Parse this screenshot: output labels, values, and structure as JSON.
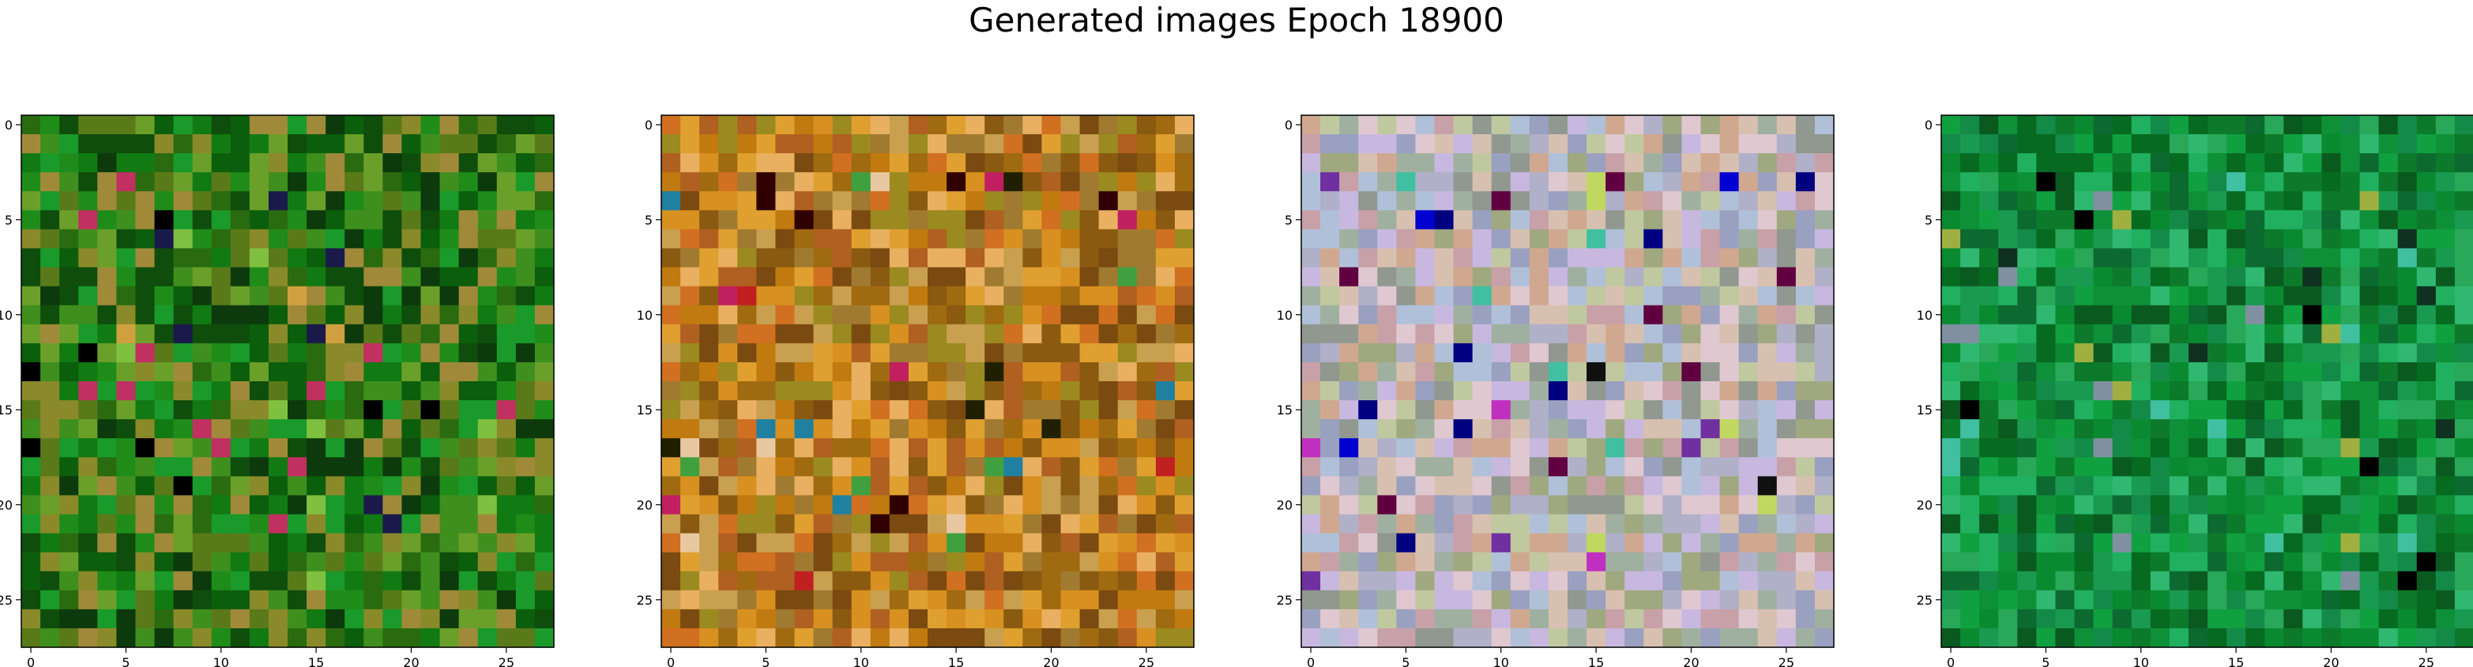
{
  "figure": {
    "title": "Generated images Epoch 18900"
  },
  "chart_data": {
    "type": "heatmap",
    "title": "Generated images Epoch 18900",
    "panel_count": 4,
    "grid_shape": [
      28,
      28
    ],
    "xlim": [
      -0.5,
      27.5
    ],
    "ylim": [
      27.5,
      -0.5
    ],
    "x_ticks": [
      0,
      5,
      10,
      15,
      20,
      25
    ],
    "y_ticks": [
      0,
      5,
      10,
      15,
      20,
      25
    ],
    "x_tick_labels": [
      "0",
      "5",
      "10",
      "15",
      "20",
      "25"
    ],
    "y_tick_labels": [
      "0",
      "5",
      "10",
      "15",
      "20",
      "25"
    ],
    "panels": [
      {
        "name": "image-1",
        "palette": [
          "#0b5e0b",
          "#127a12",
          "#1f8c1a",
          "#2a6b10",
          "#0f4d0c",
          "#3f8f1f",
          "#5a7a1a",
          "#8a8a2a",
          "#1a9a2a",
          "#0c3a0c",
          "#6aa02a",
          "#a08a3a"
        ],
        "accents": [
          "#000000",
          "#1a1a4a",
          "#c03060",
          "#d0a040",
          "#80c040"
        ]
      },
      {
        "name": "image-2",
        "palette": [
          "#c07a10",
          "#d89020",
          "#a06a10",
          "#8a5a10",
          "#e0a030",
          "#b06020",
          "#9a8a20",
          "#d07020",
          "#c8a050",
          "#a07a30",
          "#e8b060",
          "#7a4a10"
        ],
        "accents": [
          "#300000",
          "#c02020",
          "#202000",
          "#e8c8a0",
          "#40a040",
          "#2080a0",
          "#c02060"
        ]
      },
      {
        "name": "image-3",
        "palette": [
          "#c8a0a8",
          "#a0a880",
          "#b0b0c8",
          "#d8c0b0",
          "#9aa0c0",
          "#c0c8a0",
          "#e0c8d0",
          "#a0b0a0",
          "#c8b8e0",
          "#b0c0d8",
          "#d0a890",
          "#909890"
        ],
        "accents": [
          "#000080",
          "#0000d0",
          "#101010",
          "#600040",
          "#c030c0",
          "#40c0a0",
          "#f0e0c0",
          "#c0d860",
          "#7030a0"
        ]
      },
      {
        "name": "image-4",
        "palette": [
          "#0a8a30",
          "#10a040",
          "#0c7a2a",
          "#1a9a50",
          "#066a20",
          "#20b060",
          "#0e9038",
          "#148a48",
          "#0a5a20",
          "#28a858",
          "#0c6a30",
          "#30b870"
        ],
        "accents": [
          "#000000",
          "#103020",
          "#8090a0",
          "#40c0a0",
          "#a0b040"
        ]
      }
    ]
  }
}
